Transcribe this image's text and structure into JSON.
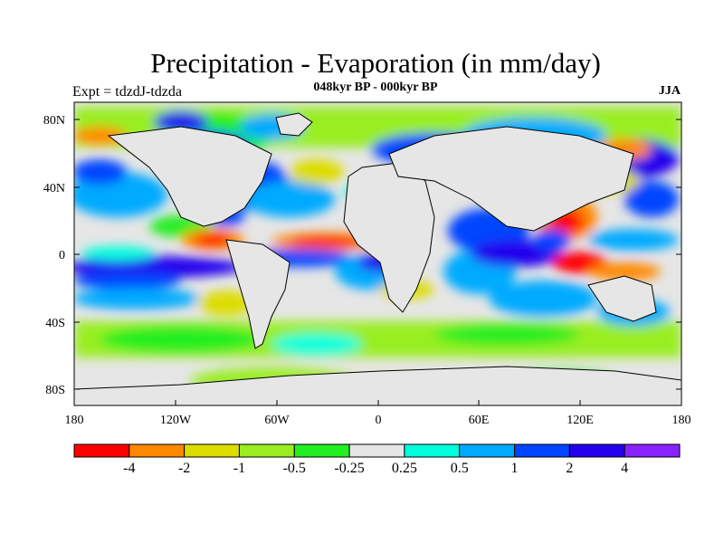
{
  "title": "Precipitation - Evaporation (in mm/day)",
  "subtitle_left": "Expt = tdzdJ-tdzda",
  "subtitle_center": "048kyr BP - 000kyr BP",
  "subtitle_right": "JJA",
  "lat_labels": [
    "80N",
    "40N",
    "0",
    "40S",
    "80S"
  ],
  "lon_labels": [
    "180",
    "120W",
    "60W",
    "0",
    "60E",
    "120E",
    "180"
  ],
  "colorbar": {
    "colors": [
      "#ff0000",
      "#ff8800",
      "#dddd00",
      "#99ee22",
      "#22ee22",
      "#e6e6e6",
      "#00ffdd",
      "#00aaff",
      "#0044ff",
      "#2200ee",
      "#8822ff"
    ],
    "labels": [
      "-4",
      "-2",
      "-1",
      "-0.5",
      "-0.25",
      "0.25",
      "0.5",
      "1",
      "2",
      "4"
    ]
  }
}
